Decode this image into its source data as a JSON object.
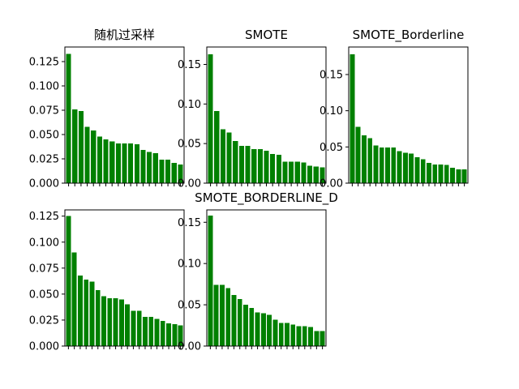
{
  "chart_data": [
    {
      "type": "bar",
      "title": "随机过采样",
      "bar_color": "#008000",
      "ylim": [
        0,
        0.14
      ],
      "yticks": [
        0.0,
        0.025,
        0.05,
        0.075,
        0.1,
        0.125
      ],
      "ytick_labels": [
        "0.000",
        "0.025",
        "0.050",
        "0.075",
        "0.100",
        "0.125"
      ],
      "values": [
        0.133,
        0.076,
        0.074,
        0.058,
        0.054,
        0.048,
        0.045,
        0.043,
        0.041,
        0.041,
        0.041,
        0.04,
        0.034,
        0.032,
        0.031,
        0.024,
        0.024,
        0.021,
        0.019
      ]
    },
    {
      "type": "bar",
      "title": "SMOTE",
      "bar_color": "#008000",
      "ylim": [
        0,
        0.172
      ],
      "yticks": [
        0.0,
        0.05,
        0.1,
        0.15
      ],
      "ytick_labels": [
        "0.00",
        "0.05",
        "0.10",
        "0.15"
      ],
      "values": [
        0.163,
        0.091,
        0.068,
        0.064,
        0.053,
        0.047,
        0.047,
        0.043,
        0.043,
        0.041,
        0.037,
        0.036,
        0.027,
        0.027,
        0.027,
        0.026,
        0.022,
        0.021,
        0.02
      ]
    },
    {
      "type": "bar",
      "title": "SMOTE_Borderline",
      "bar_color": "#008000",
      "ylim": [
        0,
        0.188
      ],
      "yticks": [
        0.0,
        0.05,
        0.1,
        0.15
      ],
      "ytick_labels": [
        "0.00",
        "0.05",
        "0.10",
        "0.15"
      ],
      "values": [
        0.178,
        0.078,
        0.066,
        0.062,
        0.052,
        0.049,
        0.049,
        0.049,
        0.044,
        0.042,
        0.041,
        0.036,
        0.033,
        0.028,
        0.026,
        0.026,
        0.025,
        0.021,
        0.019,
        0.019
      ]
    },
    {
      "type": "bar",
      "title": "",
      "bar_color": "#008000",
      "ylim": [
        0,
        0.131
      ],
      "yticks": [
        0.0,
        0.025,
        0.05,
        0.075,
        0.1,
        0.125
      ],
      "ytick_labels": [
        "0.000",
        "0.025",
        "0.050",
        "0.075",
        "0.100",
        "0.125"
      ],
      "values": [
        0.125,
        0.09,
        0.068,
        0.064,
        0.062,
        0.054,
        0.048,
        0.046,
        0.046,
        0.045,
        0.04,
        0.034,
        0.034,
        0.028,
        0.028,
        0.026,
        0.024,
        0.022,
        0.021,
        0.02
      ]
    },
    {
      "type": "bar",
      "title": "SMOTE_BORDERLINE_D",
      "bar_color": "#008000",
      "ylim": [
        0,
        0.165
      ],
      "yticks": [
        0.0,
        0.05,
        0.1,
        0.15
      ],
      "ytick_labels": [
        "0.00",
        "0.05",
        "0.10",
        "0.15"
      ],
      "values": [
        0.158,
        0.074,
        0.074,
        0.07,
        0.062,
        0.057,
        0.05,
        0.046,
        0.041,
        0.04,
        0.038,
        0.032,
        0.028,
        0.028,
        0.026,
        0.024,
        0.024,
        0.023,
        0.018,
        0.018
      ]
    }
  ]
}
